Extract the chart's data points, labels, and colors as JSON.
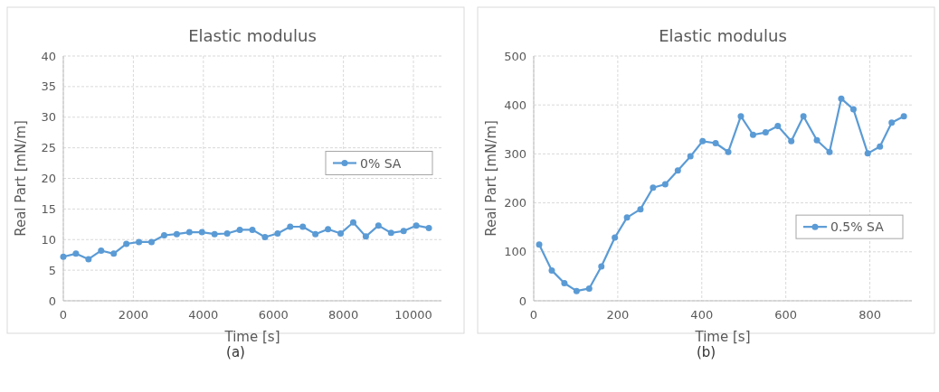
{
  "chart_data": [
    {
      "type": "line",
      "title": "Elastic modulus",
      "xlabel": "Time [s]",
      "ylabel": "Real Part [mN/m]",
      "annotations": [
        "(a)"
      ],
      "x": [
        0,
        360,
        720,
        1080,
        1440,
        1800,
        2160,
        2520,
        2880,
        3240,
        3600,
        3960,
        4320,
        4680,
        5040,
        5400,
        5760,
        6120,
        6480,
        6840,
        7200,
        7560,
        7920,
        8280,
        8640,
        9000,
        9360,
        9720,
        10080,
        10440
      ],
      "series": [
        {
          "name": "0% SA",
          "color": "#5b9bd5",
          "values": [
            7.2,
            7.7,
            6.8,
            8.2,
            7.7,
            9.3,
            9.6,
            9.6,
            10.7,
            10.9,
            11.2,
            11.2,
            10.9,
            11.0,
            11.6,
            11.6,
            10.4,
            11.0,
            12.1,
            12.1,
            10.9,
            11.7,
            11.0,
            12.8,
            10.5,
            12.3,
            11.1,
            11.4,
            12.3,
            11.9
          ]
        }
      ],
      "xlim": [
        0,
        10800
      ],
      "xticks": [
        0,
        2000,
        4000,
        6000,
        8000,
        10000
      ],
      "ylim": [
        0,
        40
      ],
      "yticks": [
        0,
        5,
        10,
        15,
        20,
        25,
        30,
        35,
        40
      ],
      "grid": true,
      "legend": "right",
      "marker": "circle",
      "line_style": "solid"
    },
    {
      "type": "line",
      "title": "Elastic modulus",
      "xlabel": "Time [s]",
      "ylabel": "Real Part [mN/m]",
      "annotations": [
        "(b)"
      ],
      "x": [
        13,
        43,
        73,
        102,
        132,
        161,
        193,
        222,
        254,
        284,
        313,
        343,
        373,
        402,
        433,
        463,
        493,
        522,
        552,
        581,
        613,
        642,
        674,
        704,
        732,
        761,
        795,
        824,
        852,
        881
      ],
      "series": [
        {
          "name": "0.5% SA",
          "color": "#5b9bd5",
          "values": [
            115,
            62,
            36,
            20,
            25,
            70,
            129,
            170,
            187,
            231,
            238,
            266,
            295,
            326,
            322,
            304,
            377,
            339,
            344,
            357,
            326,
            377,
            328,
            304,
            413,
            391,
            301,
            315,
            364,
            377
          ]
        }
      ],
      "xlim": [
        0,
        900
      ],
      "xticks": [
        0,
        200,
        400,
        600,
        800
      ],
      "ylim": [
        0,
        500
      ],
      "yticks": [
        0,
        100,
        200,
        300,
        400,
        500
      ],
      "grid": true,
      "legend": "bottom right",
      "marker": "circle",
      "line_style": "solid"
    }
  ]
}
